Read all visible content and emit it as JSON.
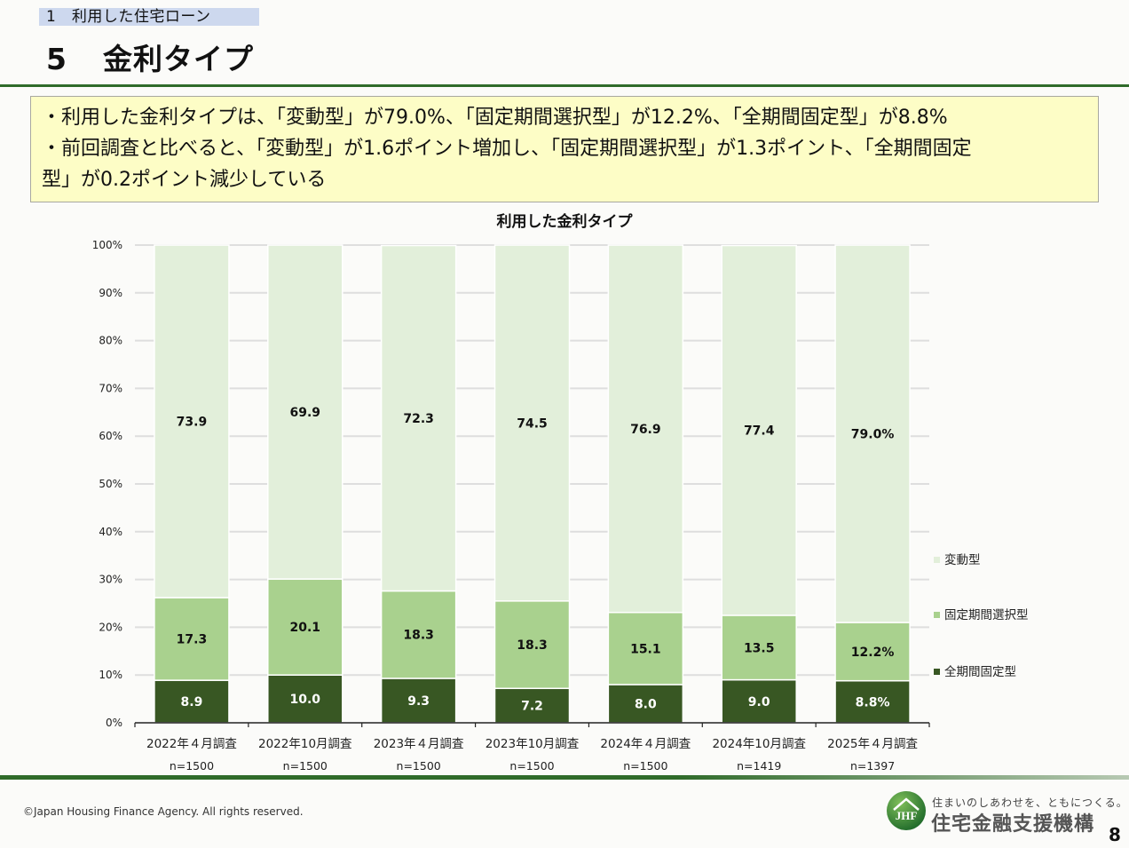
{
  "header": {
    "section_label": "1　利用した住宅ローン",
    "title_number": "5",
    "title_text": "金利タイプ"
  },
  "summary": {
    "line1": "・利用した金利タイプは、「変動型」が79.0%、「固定期間選択型」が12.2%、「全期間固定型」が8.8%",
    "line2": "・前回調査と比べると、「変動型」が1.6ポイント増加し、「固定期間選択型」が1.3ポイント、「全期間固定",
    "line3": "型」が0.2ポイント減少している"
  },
  "chart_data": {
    "type": "bar",
    "stacked": true,
    "percent": true,
    "title": "利用した金利タイプ",
    "xlabel": "",
    "ylabel": "",
    "ylim": [
      0,
      100
    ],
    "yticks": [
      "0%",
      "10%",
      "20%",
      "30%",
      "40%",
      "50%",
      "60%",
      "70%",
      "80%",
      "90%",
      "100%"
    ],
    "grid": true,
    "legend_position": "right",
    "categories": [
      "2022年４月調査",
      "2022年10月調査",
      "2023年４月調査",
      "2023年10月調査",
      "2024年４月調査",
      "2024年10月調査",
      "2025年４月調査"
    ],
    "sample_sizes": [
      "n=1500",
      "n=1500",
      "n=1500",
      "n=1500",
      "n=1500",
      "n=1419",
      "n=1397"
    ],
    "series": [
      {
        "name": "全期間固定型",
        "color": "#385723",
        "label_color": "#ffffff",
        "values": [
          8.9,
          10.0,
          9.3,
          7.2,
          8.0,
          9.0,
          8.8
        ],
        "labels": [
          "8.9",
          "10.0",
          "9.3",
          "7.2",
          "8.0",
          "9.0",
          "8.8%"
        ]
      },
      {
        "name": "固定期間選択型",
        "color": "#a9d18e",
        "label_color": "#111111",
        "values": [
          17.3,
          20.1,
          18.3,
          18.3,
          15.1,
          13.5,
          12.2
        ],
        "labels": [
          "17.3",
          "20.1",
          "18.3",
          "18.3",
          "15.1",
          "13.5",
          "12.2%"
        ]
      },
      {
        "name": "変動型",
        "color": "#e2efda",
        "label_color": "#111111",
        "values": [
          73.9,
          69.9,
          72.3,
          74.5,
          76.9,
          77.4,
          79.0
        ],
        "labels": [
          "73.9",
          "69.9",
          "72.3",
          "74.5",
          "76.9",
          "77.4",
          "79.0%"
        ]
      }
    ],
    "legend_order": [
      "変動型",
      "固定期間選択型",
      "全期間固定型"
    ]
  },
  "footer": {
    "copyright": "©Japan Housing Finance Agency. All rights reserved.",
    "logo_text": "JHF",
    "tagline": "住まいのしあわせを、ともにつくる。",
    "org_name": "住宅金融支援機構",
    "page_number": "8"
  }
}
